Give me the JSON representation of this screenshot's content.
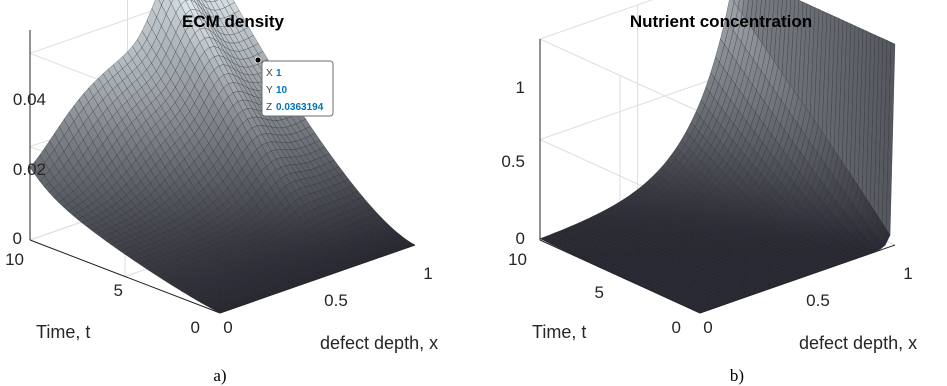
{
  "chart_data": [
    {
      "type": "surface",
      "title": "ECM density",
      "xlabel": "defect depth, x",
      "ylabel": "Time, t",
      "zlabel": "",
      "x_range": [
        0,
        1
      ],
      "y_range": [
        0,
        10
      ],
      "z_range": [
        0,
        0.045
      ],
      "x_ticks": [
        "0",
        "0.5",
        "1"
      ],
      "y_ticks": [
        "0",
        "5",
        "10"
      ],
      "z_ticks": [
        "0",
        "0.02",
        "0.04"
      ],
      "grid": true,
      "caption": "a)",
      "surface_color_low": "#1b1b24",
      "surface_color_high": "#e9f3f6",
      "datatip": {
        "x_label": "X",
        "x_value": "1",
        "y_label": "Y",
        "y_value": "10",
        "z_label": "Z",
        "z_value": "0.0363194",
        "value_color": "#0072bd"
      },
      "profile_samples": {
        "x": [
          0,
          0.1,
          0.2,
          0.3,
          0.4,
          0.5,
          0.6,
          0.7,
          0.8,
          0.9,
          1
        ],
        "z_at_t10": [
          0.022,
          0.023,
          0.024,
          0.026,
          0.029,
          0.033,
          0.039,
          0.045,
          0.04,
          0.038,
          0.0363
        ],
        "z_at_t0": [
          0,
          0,
          0,
          0,
          0,
          0,
          0,
          0,
          0,
          0,
          0
        ]
      }
    },
    {
      "type": "surface",
      "title": "Nutrient concentration",
      "xlabel": "defect depth, x",
      "ylabel": "Time, t",
      "zlabel": "",
      "x_range": [
        0,
        1
      ],
      "y_range": [
        0,
        10
      ],
      "z_range": [
        0,
        1
      ],
      "x_ticks": [
        "0",
        "0.5",
        "1"
      ],
      "y_ticks": [
        "0",
        "5",
        "10"
      ],
      "z_ticks": [
        "0",
        "0.5",
        "1"
      ],
      "grid": true,
      "caption": "b)",
      "surface_color_low": "#1b1b24",
      "surface_color_high": "#e9f3f6",
      "profile_samples": {
        "x": [
          0,
          0.1,
          0.2,
          0.3,
          0.4,
          0.5,
          0.6,
          0.7,
          0.8,
          0.9,
          1
        ],
        "z_at_t10": [
          0,
          0,
          0.002,
          0.01,
          0.03,
          0.08,
          0.18,
          0.33,
          0.55,
          0.77,
          1
        ],
        "z_at_t0": [
          0,
          0,
          0,
          0,
          0,
          0,
          0,
          0,
          0,
          0,
          1
        ]
      }
    }
  ]
}
